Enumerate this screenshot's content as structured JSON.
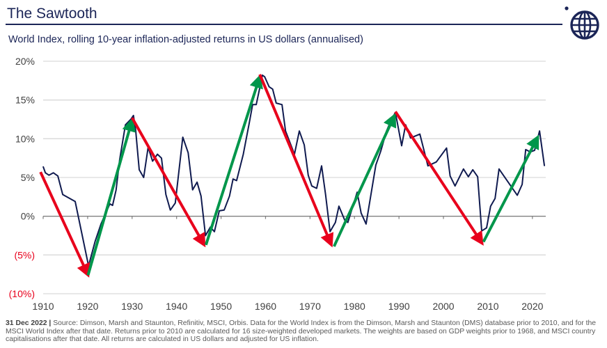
{
  "header": {
    "title": "The Sawtooth",
    "subtitle": "World Index, rolling 10-year inflation-adjusted returns in US dollars (annualised)",
    "logo_icon": "globe-icon"
  },
  "colors": {
    "navy": "#1b2557",
    "series_line": "#0f1a4f",
    "down_arrow": "#e8001c",
    "up_arrow": "#00964b",
    "negative_label": "#e8001c",
    "grid": "#d9d9d9",
    "axis": "#808080"
  },
  "chart_data": {
    "type": "line",
    "title": "World Index, rolling 10-year inflation-adjusted returns in US dollars (annualised)",
    "xlabel": "",
    "ylabel": "",
    "xlim": [
      1910,
      2023
    ],
    "ylim": [
      -10,
      20
    ],
    "grid": true,
    "y_ticks": [
      {
        "value": 20,
        "label": "20%"
      },
      {
        "value": 15,
        "label": "15%"
      },
      {
        "value": 10,
        "label": "10%"
      },
      {
        "value": 5,
        "label": "5%"
      },
      {
        "value": 0,
        "label": "0%"
      },
      {
        "value": -5,
        "label": "(5%)"
      },
      {
        "value": -10,
        "label": "(10%)"
      }
    ],
    "x_ticks": [
      {
        "value": 1910,
        "label": "1910"
      },
      {
        "value": 1920,
        "label": "1920"
      },
      {
        "value": 1930,
        "label": "1930"
      },
      {
        "value": 1940,
        "label": "1940"
      },
      {
        "value": 1950,
        "label": "1950"
      },
      {
        "value": 1960,
        "label": "1960"
      },
      {
        "value": 1970,
        "label": "1970"
      },
      {
        "value": 1980,
        "label": "1980"
      },
      {
        "value": 1990,
        "label": "1990"
      },
      {
        "value": 2000,
        "label": "2000"
      },
      {
        "value": 2010,
        "label": "2010"
      },
      {
        "value": 2020,
        "label": "2020"
      }
    ],
    "series": [
      {
        "name": "World Index rolling 10-year real return (%)",
        "points": [
          [
            1910.0,
            6.4
          ],
          [
            1910.5,
            5.6
          ],
          [
            1911.3,
            5.3
          ],
          [
            1912.3,
            5.6
          ],
          [
            1913.3,
            5.2
          ],
          [
            1914.4,
            2.8
          ],
          [
            1917.2,
            1.9
          ],
          [
            1920.2,
            -6.4
          ],
          [
            1921.7,
            -3.2
          ],
          [
            1923.0,
            -1.0
          ],
          [
            1925.0,
            1.6
          ],
          [
            1925.6,
            1.4
          ],
          [
            1926.4,
            3.4
          ],
          [
            1927.2,
            7.3
          ],
          [
            1928.5,
            11.8
          ],
          [
            1929.7,
            12.5
          ],
          [
            1930.3,
            13.0
          ],
          [
            1930.8,
            11.1
          ],
          [
            1931.6,
            6.0
          ],
          [
            1932.6,
            5.0
          ],
          [
            1933.6,
            8.9
          ],
          [
            1934.6,
            7.1
          ],
          [
            1935.7,
            8.0
          ],
          [
            1936.6,
            7.5
          ],
          [
            1937.6,
            2.8
          ],
          [
            1938.6,
            0.8
          ],
          [
            1939.7,
            1.7
          ],
          [
            1941.4,
            10.2
          ],
          [
            1942.6,
            8.2
          ],
          [
            1943.6,
            3.4
          ],
          [
            1944.6,
            4.4
          ],
          [
            1945.5,
            2.6
          ],
          [
            1946.5,
            -2.5
          ],
          [
            1947.6,
            -1.4
          ],
          [
            1948.5,
            -2.0
          ],
          [
            1949.6,
            0.7
          ],
          [
            1950.7,
            0.8
          ],
          [
            1951.9,
            2.6
          ],
          [
            1952.7,
            4.8
          ],
          [
            1953.5,
            4.6
          ],
          [
            1955.0,
            8.0
          ],
          [
            1956.3,
            11.9
          ],
          [
            1957.1,
            14.4
          ],
          [
            1957.9,
            14.4
          ],
          [
            1959.3,
            18.2
          ],
          [
            1959.8,
            18.0
          ],
          [
            1960.8,
            16.7
          ],
          [
            1961.6,
            16.4
          ],
          [
            1962.4,
            14.6
          ],
          [
            1963.7,
            14.4
          ],
          [
            1964.5,
            11.0
          ],
          [
            1966.5,
            8.0
          ],
          [
            1967.6,
            11.0
          ],
          [
            1968.7,
            9.2
          ],
          [
            1969.6,
            5.3
          ],
          [
            1970.4,
            3.9
          ],
          [
            1971.5,
            3.6
          ],
          [
            1972.6,
            6.5
          ],
          [
            1973.5,
            2.8
          ],
          [
            1974.5,
            -2.0
          ],
          [
            1975.7,
            -0.8
          ],
          [
            1976.5,
            1.3
          ],
          [
            1977.8,
            -0.5
          ],
          [
            1978.5,
            -0.8
          ],
          [
            1980.6,
            3.1
          ],
          [
            1981.5,
            0.4
          ],
          [
            1982.6,
            -1.0
          ],
          [
            1983.7,
            2.8
          ],
          [
            1984.8,
            6.6
          ],
          [
            1985.9,
            8.4
          ],
          [
            1987.2,
            11.0
          ],
          [
            1988.0,
            12.1
          ],
          [
            1989.2,
            13.4
          ],
          [
            1990.6,
            9.1
          ],
          [
            1991.5,
            11.8
          ],
          [
            1992.6,
            10.1
          ],
          [
            1994.7,
            10.6
          ],
          [
            1996.5,
            6.5
          ],
          [
            1998.4,
            7.0
          ],
          [
            2000.7,
            8.8
          ],
          [
            2001.5,
            5.2
          ],
          [
            2002.6,
            3.9
          ],
          [
            2004.5,
            6.1
          ],
          [
            2005.6,
            5.1
          ],
          [
            2006.6,
            6.0
          ],
          [
            2007.7,
            5.1
          ],
          [
            2008.6,
            -1.9
          ],
          [
            2009.7,
            -1.5
          ],
          [
            2010.6,
            1.3
          ],
          [
            2011.6,
            2.3
          ],
          [
            2012.5,
            6.1
          ],
          [
            2016.6,
            2.7
          ],
          [
            2017.7,
            4.1
          ],
          [
            2018.5,
            8.6
          ],
          [
            2019.5,
            8.3
          ],
          [
            2020.5,
            8.5
          ],
          [
            2021.6,
            11.0
          ],
          [
            2022.7,
            6.5
          ]
        ]
      }
    ],
    "annotations": [
      {
        "type": "arrow",
        "direction": "down",
        "from": [
          1909.4,
          5.7
        ],
        "to": [
          1920.1,
          -7.6
        ]
      },
      {
        "type": "arrow",
        "direction": "up",
        "from": [
          1920.1,
          -7.6
        ],
        "to": [
          1930.0,
          12.4
        ]
      },
      {
        "type": "arrow",
        "direction": "down",
        "from": [
          1930.0,
          12.7
        ],
        "to": [
          1946.2,
          -3.7
        ]
      },
      {
        "type": "arrow",
        "direction": "up",
        "from": [
          1946.6,
          -3.7
        ],
        "to": [
          1958.7,
          18.0
        ]
      },
      {
        "type": "arrow",
        "direction": "down",
        "from": [
          1958.7,
          18.3
        ],
        "to": [
          1974.8,
          -3.7
        ]
      },
      {
        "type": "arrow",
        "direction": "up",
        "from": [
          1975.4,
          -3.9
        ],
        "to": [
          1989.0,
          13.0
        ]
      },
      {
        "type": "arrow",
        "direction": "down",
        "from": [
          1989.2,
          13.5
        ],
        "to": [
          2008.7,
          -3.5
        ]
      },
      {
        "type": "arrow",
        "direction": "up",
        "from": [
          2009.0,
          -3.3
        ],
        "to": [
          2021.2,
          10.2
        ]
      }
    ]
  },
  "footnote": {
    "date": "31 Dec 2022 |",
    "text": " Source: Dimson, Marsh and Staunton, Refinitiv, MSCI, Orbis. Data for the World Index is from the Dimson, Marsh and Staunton (DMS) database prior to 2010, and for the MSCI World Index after that date. Returns prior to 2010 are calculated for 16 size-weighted developed markets. The weights are based on GDP weights prior to 1968, and MSCI country capitalisations after that date. All returns are calculated in US dollars and adjusted for US inflation."
  }
}
